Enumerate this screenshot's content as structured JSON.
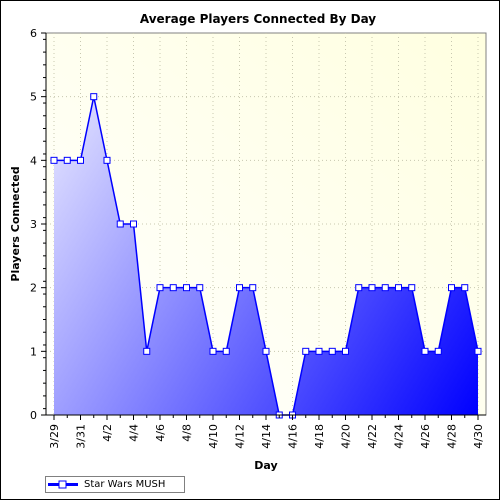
{
  "chart_data": {
    "type": "area",
    "title": "Average Players Connected By Day",
    "xlabel": "Day",
    "ylabel": "Players Connected",
    "ylim": [
      0,
      6
    ],
    "y_ticks": [
      "0",
      "1",
      "2",
      "3",
      "4",
      "5",
      "6"
    ],
    "x_tick_labels": [
      "3/29",
      "3/31",
      "4/2",
      "4/4",
      "4/6",
      "4/8",
      "4/10",
      "4/12",
      "4/14",
      "4/16",
      "4/18",
      "4/20",
      "4/22",
      "4/24",
      "4/26",
      "4/28",
      "4/30"
    ],
    "x": [
      "3/29",
      "3/30",
      "3/31",
      "4/1",
      "4/2",
      "4/3",
      "4/4",
      "4/5",
      "4/6",
      "4/7",
      "4/8",
      "4/9",
      "4/10",
      "4/11",
      "4/12",
      "4/13",
      "4/14",
      "4/15",
      "4/16",
      "4/17",
      "4/18",
      "4/19",
      "4/20",
      "4/21",
      "4/22",
      "4/23",
      "4/24",
      "4/25",
      "4/26",
      "4/27",
      "4/28",
      "4/29",
      "4/30"
    ],
    "series": [
      {
        "name": "Star Wars MUSH",
        "values": [
          4,
          4,
          4,
          5,
          4,
          3,
          3,
          1,
          2,
          2,
          2,
          2,
          1,
          1,
          2,
          2,
          1,
          0,
          0,
          1,
          1,
          1,
          1,
          2,
          2,
          2,
          2,
          2,
          1,
          1,
          2,
          2,
          1
        ]
      }
    ],
    "grid": true,
    "legend_position": "bottom-left",
    "colors": {
      "line": "#0000ff",
      "fill_light": "#d8d8ff",
      "fill_dark": "#0000ff",
      "plot_bg_light": "#ffffe0",
      "plot_bg_white": "#ffffff",
      "marker_fill": "#ffffff",
      "grid": "#c8c8b0"
    }
  }
}
